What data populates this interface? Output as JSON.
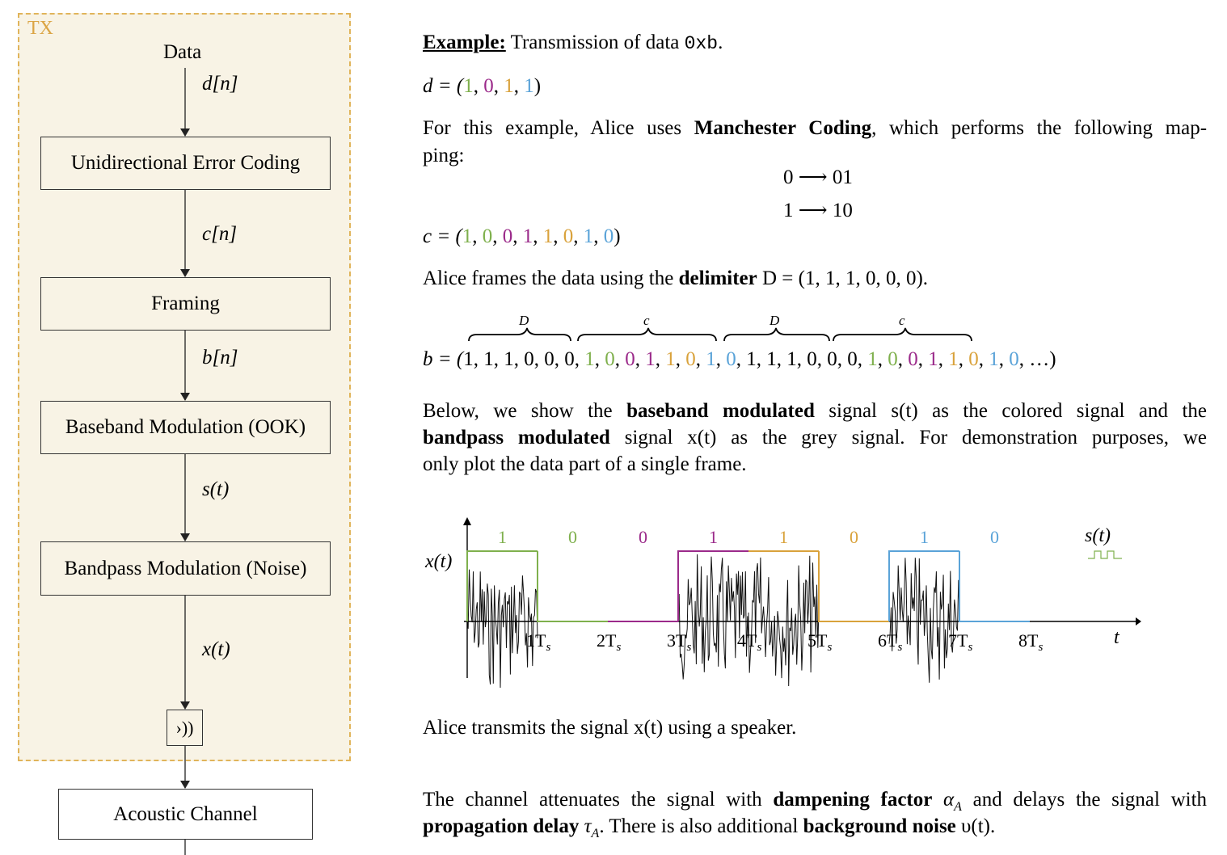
{
  "colors": {
    "green": "#7fb04d",
    "purple": "#9b2a8a",
    "orange": "#d9a23b",
    "blue": "#5aa3d8",
    "panel_border": "#e0b45a",
    "panel_fill": "#f8f3e5"
  },
  "tx": {
    "label": "TX",
    "data_label": "Data",
    "blocks": [
      "Unidirectional Error Coding",
      "Framing",
      "Baseband Modulation (OOK)",
      "Bandpass Modulation (Noise)"
    ],
    "signals": [
      "d[n]",
      "c[n]",
      "b[n]",
      "s(t)",
      "x(t)"
    ],
    "speaker_icon": "speaker-icon",
    "speaker_glyph": "›))"
  },
  "channel": {
    "label": "Acoustic Channel"
  },
  "text": {
    "example_title": "Example:",
    "example_text": " Transmission of data ",
    "example_value": "0xb",
    "example_end": ".",
    "d_lhs": "d = (",
    "d_bits": [
      "1",
      "0",
      "1",
      "1"
    ],
    "coding_pre": "For this example, Alice uses ",
    "coding_bold": "Manchester Coding",
    "coding_post": ", which performs the following map-",
    "coding_line2": "ping:",
    "map0": "0 ⟶ 01",
    "map1": "1 ⟶ 10",
    "c_lhs": "c = (",
    "c_bits": [
      "1",
      "0",
      "0",
      "1",
      "1",
      "0",
      "1",
      "0"
    ],
    "frame_pre": "Alice frames the data using the ",
    "frame_bold": "delimiter",
    "frame_post": " D = (1, 1, 1, 0, 0, 0).",
    "b_lhs": "b = (",
    "b_delim": "1, 1, 1, 0, 0, 0, ",
    "b_end": "…)",
    "brace_D": "D",
    "brace_c": "c",
    "below_1": "Below, we show the ",
    "below_bold1": "baseband modulated",
    "below_2": " signal s(t) as the colored signal and the",
    "below_bold2": "bandpass modulated",
    "below_3": " signal x(t) as the grey signal. For demonstration purposes, we",
    "below_4": "only plot the data part of a single frame.",
    "transmit": "Alice transmits the signal x(t) using a speaker.",
    "ch_1": "The channel attenuates the signal with ",
    "ch_bold1": "dampening factor",
    "ch_2": " α",
    "ch_2sub": "A",
    "ch_3": " and delays the signal with",
    "ch_bold2": "propagation delay",
    "ch_4": " τ",
    "ch_4sub": "A",
    "ch_5": ". There is also additional ",
    "ch_bold3": "background noise",
    "ch_6": " υ(t)."
  },
  "chart_data": {
    "type": "line",
    "x_axis_label": "t",
    "y_axis_label": "x(t)",
    "legend_label": "s(t)",
    "x_ticks": [
      "1T",
      "2T",
      "3T",
      "4T",
      "5T",
      "6T",
      "7T",
      "8T"
    ],
    "tick_sub": "s",
    "bits": [
      "1",
      "0",
      "0",
      "1",
      "1",
      "0",
      "1",
      "0"
    ],
    "bit_colors": [
      "green",
      "green",
      "purple",
      "purple",
      "orange",
      "orange",
      "blue",
      "blue"
    ],
    "baseband_levels": [
      1,
      0,
      0,
      1,
      1,
      0,
      1,
      0
    ],
    "x_range": [
      0,
      9.3
    ]
  }
}
